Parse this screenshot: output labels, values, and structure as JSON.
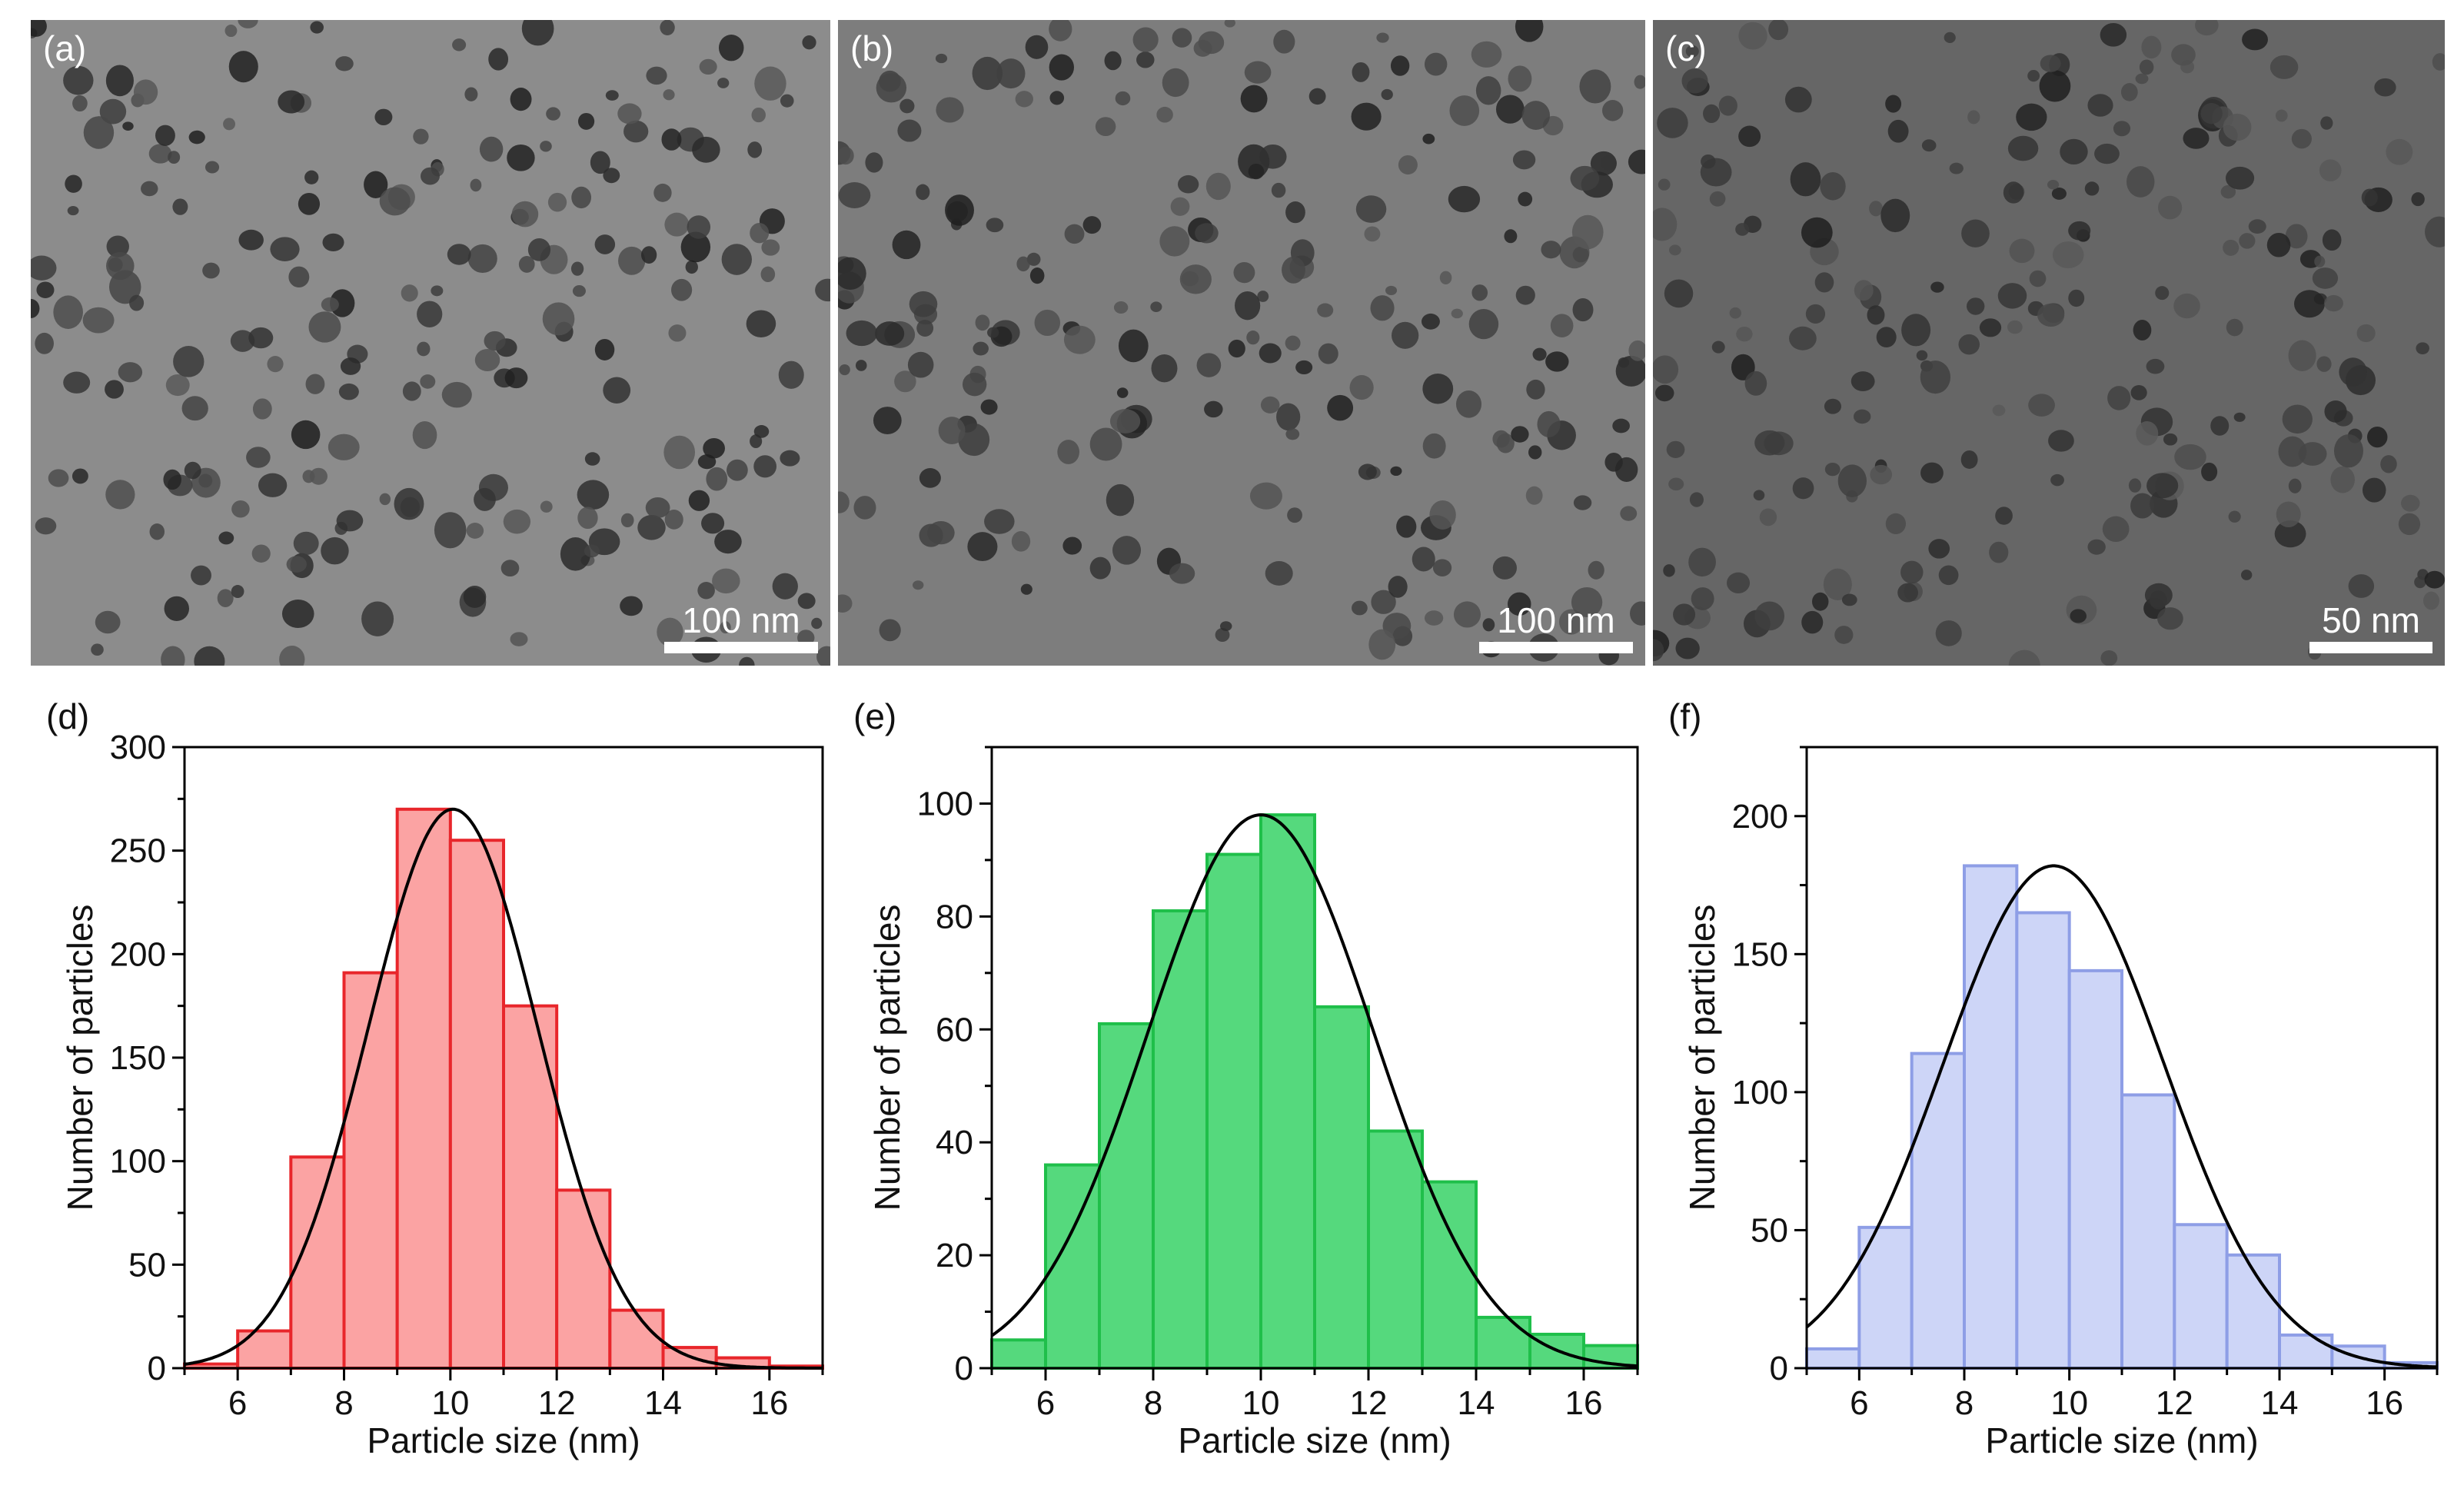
{
  "micrographs": [
    {
      "label": "(a)",
      "scale_bar": "100 nm"
    },
    {
      "label": "(b)",
      "scale_bar": "100 nm"
    },
    {
      "label": "(c)",
      "scale_bar": "50 nm"
    }
  ],
  "chart_data": [
    {
      "type": "bar",
      "panel_label": "(d)",
      "xlabel": "Particle size (nm)",
      "ylabel": "Number of particles",
      "xlim": [
        5,
        17
      ],
      "ylim": [
        0,
        300
      ],
      "xticks": [
        6,
        8,
        10,
        12,
        14,
        16
      ],
      "yticks": [
        0,
        50,
        100,
        150,
        200,
        250,
        300
      ],
      "bin_edges": [
        5,
        6,
        7,
        8,
        9,
        10,
        11,
        12,
        13,
        14,
        15,
        16,
        17
      ],
      "values": [
        2,
        18,
        102,
        191,
        270,
        255,
        175,
        86,
        28,
        10,
        5,
        1
      ],
      "fit": {
        "type": "gaussian",
        "peak": 270,
        "center": 10.05,
        "sigma": 1.6
      },
      "bar_fill": "#fba3a3",
      "bar_edge": "#e8262b"
    },
    {
      "type": "bar",
      "panel_label": "(e)",
      "xlabel": "Particle size (nm)",
      "ylabel": "Number of particles",
      "xlim": [
        5,
        17
      ],
      "ylim": [
        0,
        110
      ],
      "xticks": [
        6,
        8,
        10,
        12,
        14,
        16
      ],
      "yticks": [
        0,
        20,
        40,
        60,
        80,
        100
      ],
      "bin_edges": [
        5,
        6,
        7,
        8,
        9,
        10,
        11,
        12,
        13,
        14,
        15,
        16,
        17
      ],
      "values": [
        5,
        36,
        61,
        81,
        91,
        98,
        64,
        42,
        33,
        9,
        6,
        4
      ],
      "fit": {
        "type": "gaussian",
        "peak": 98,
        "center": 10.0,
        "sigma": 2.1
      },
      "bar_fill": "#55d97d",
      "bar_edge": "#1fbf4a"
    },
    {
      "type": "bar",
      "panel_label": "(f)",
      "xlabel": "Particle size (nm)",
      "ylabel": "Number of particles",
      "xlim": [
        5,
        17
      ],
      "ylim": [
        0,
        225
      ],
      "xticks": [
        6,
        8,
        10,
        12,
        14,
        16
      ],
      "yticks": [
        0,
        50,
        100,
        150,
        200
      ],
      "bin_edges": [
        5,
        6,
        7,
        8,
        9,
        10,
        11,
        12,
        13,
        14,
        15,
        16,
        17
      ],
      "values": [
        7,
        51,
        114,
        182,
        165,
        144,
        99,
        52,
        41,
        12,
        8,
        2
      ],
      "fit": {
        "type": "gaussian",
        "peak": 182,
        "center": 9.7,
        "sigma": 2.1
      },
      "bar_fill": "#cdd5f7",
      "bar_edge": "#8e9ee6"
    }
  ]
}
